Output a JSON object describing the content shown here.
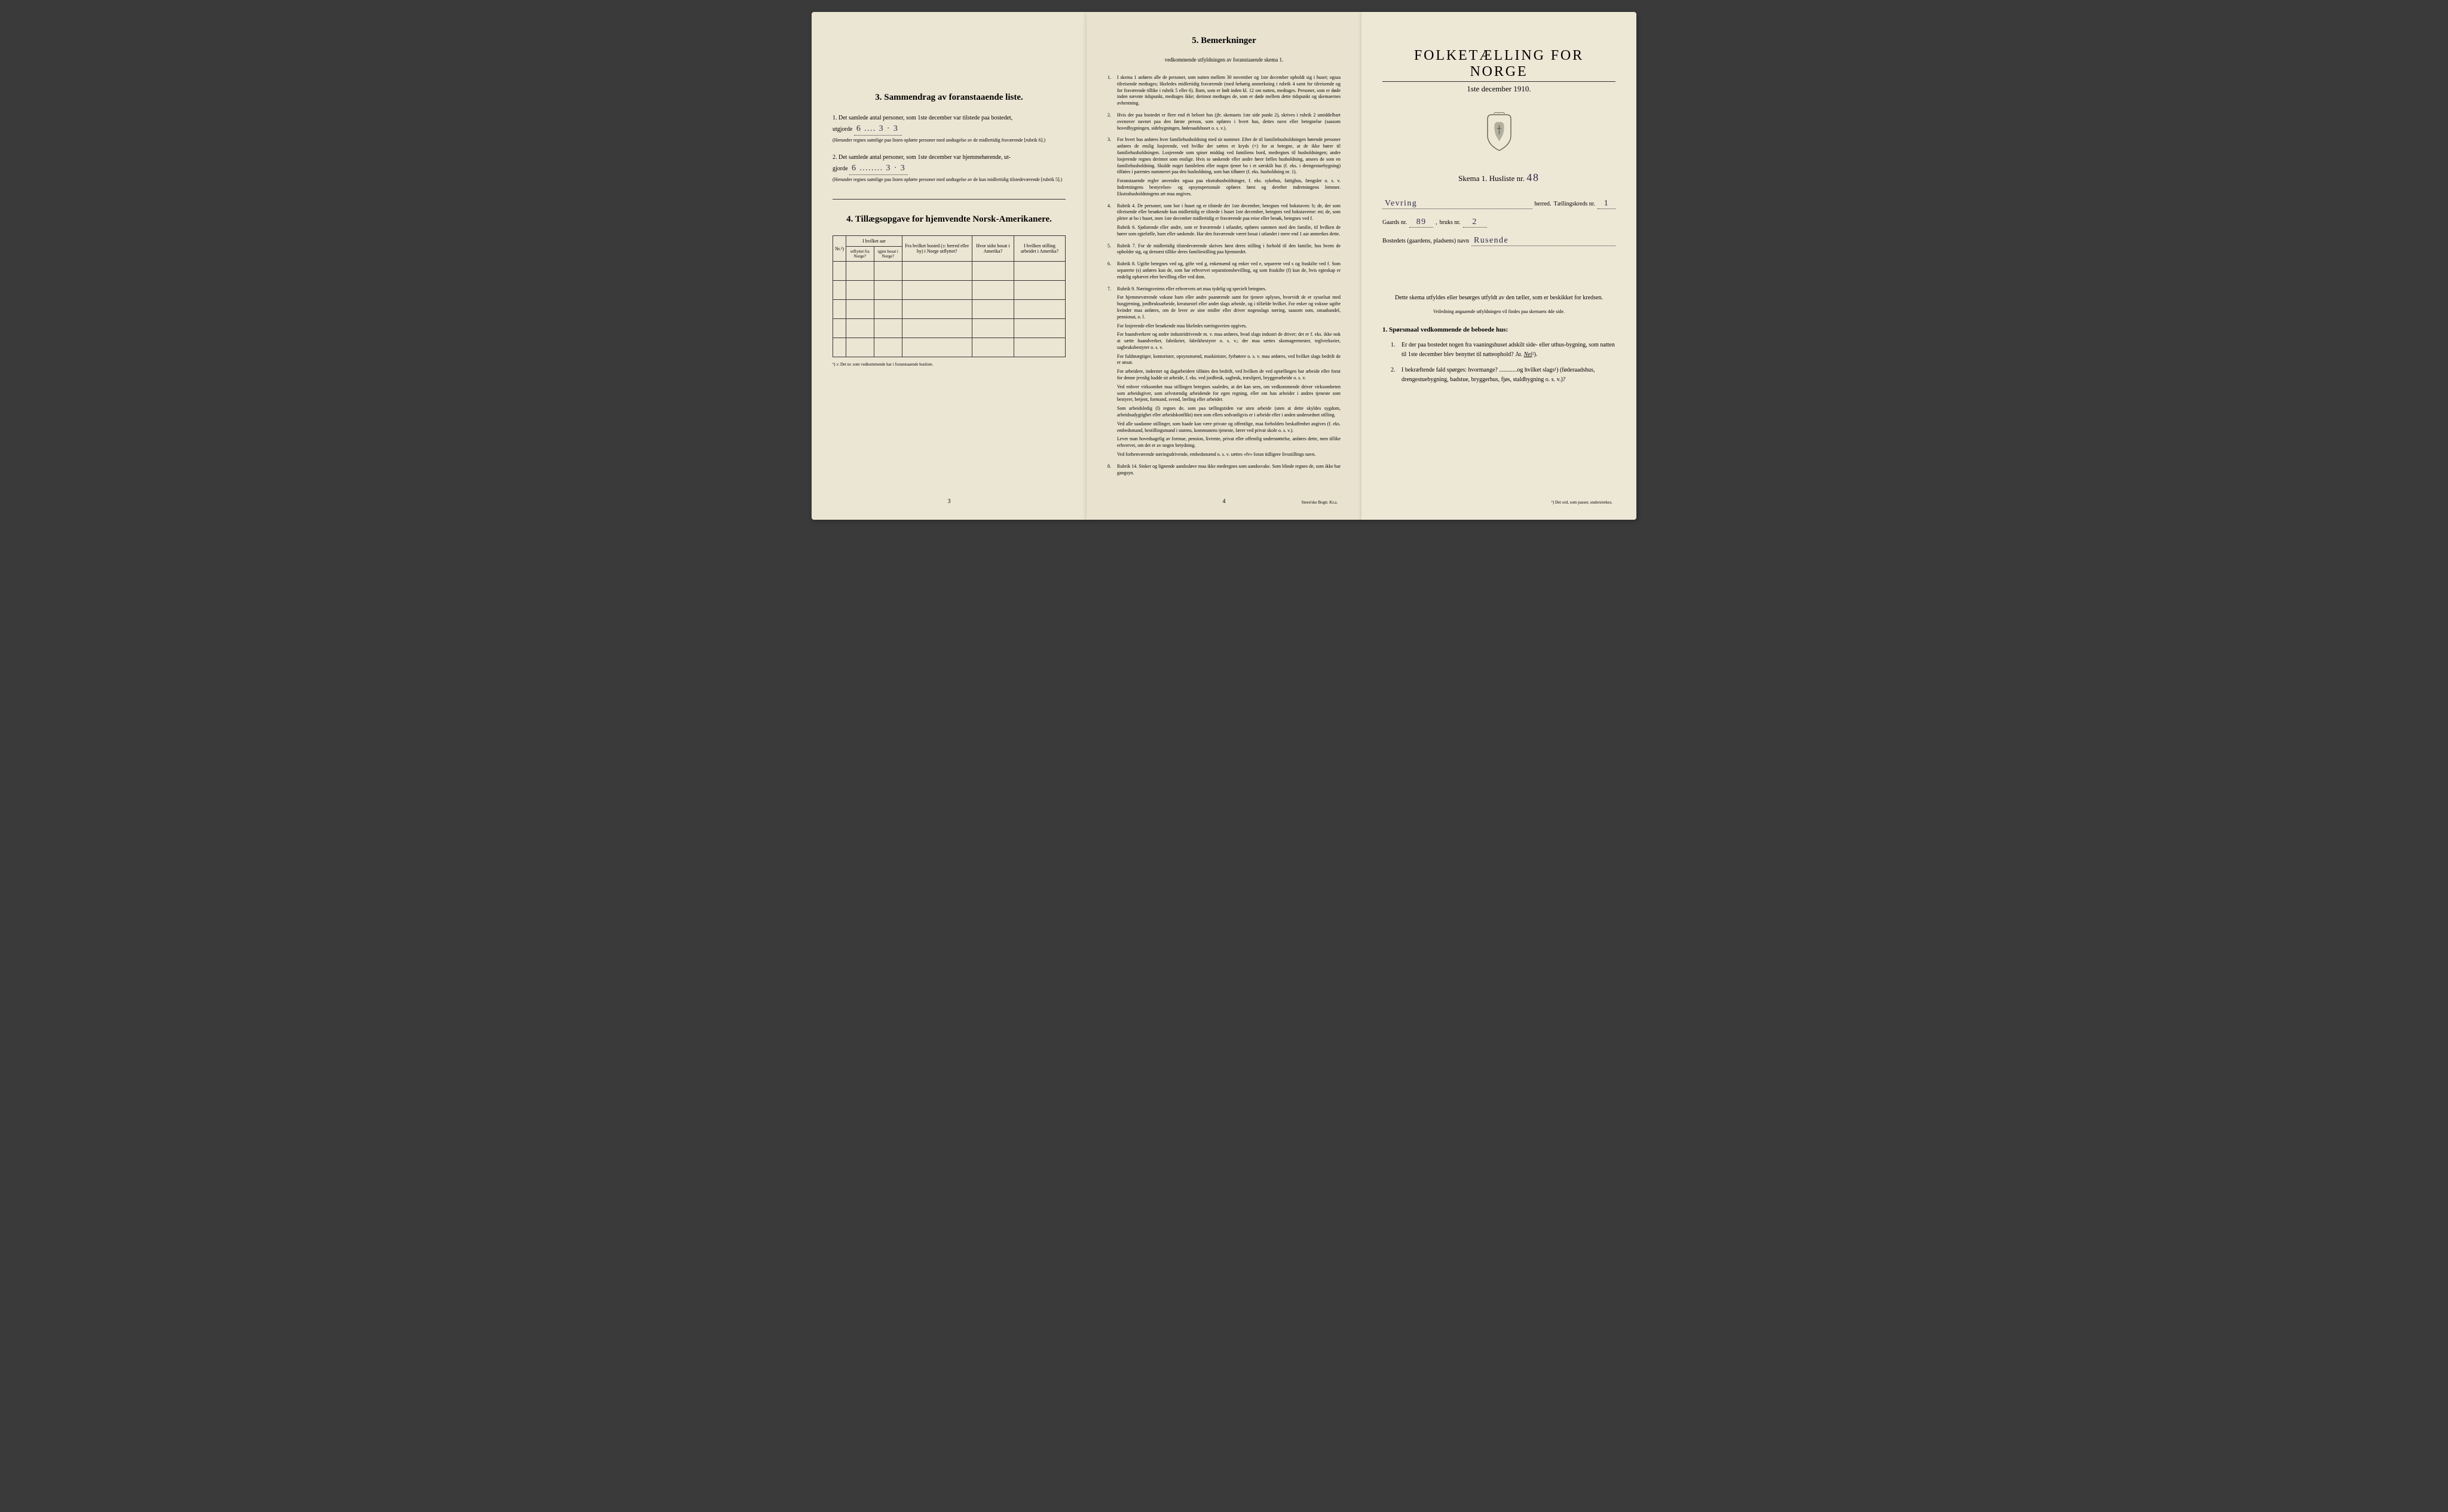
{
  "colors": {
    "paper": "#ebe5d3",
    "paper_mid": "#e8e2cf",
    "paper_right": "#ede7d6",
    "ink": "#1a1a1a",
    "handwriting": "#2a2a4a",
    "background": "#3a3a3a"
  },
  "left": {
    "section3": {
      "title": "3.   Sammendrag av foranstaaende liste.",
      "item1": {
        "num": "1.",
        "text": "Det samlede antal personer, som 1ste december var tilstede paa bostedet,",
        "text2": "utgjorde",
        "value": "6 .... 3 · 3",
        "note": "(Herunder regnes samtlige paa listen opførte personer med undtagelse av de midlertidig fraværende [rubrik 6].)"
      },
      "item2": {
        "num": "2.",
        "text": "Det samlede antal personer, som 1ste december var hjemmehørende, ut-",
        "text2": "gjorde",
        "value": "6 ........ 3 · 3",
        "note": "(Herunder regnes samtlige paa listen opførte personer med undtagelse av de kun midlertidig tilstedeværende [rubrik 5].)"
      }
    },
    "section4": {
      "title": "4.   Tillægsopgave for hjemvendte Norsk-Amerikanere.",
      "table": {
        "headers": {
          "col1": "Nr.¹)",
          "col2_top": "I hvilket aar",
          "col2a": "utflyttet fra Norge?",
          "col2b": "igjen bosat i Norge?",
          "col3": "Fra hvilket bosted (ɔ: herred eller by) i Norge utflyttet?",
          "col4": "Hvor sidst bosat i Amerika?",
          "col5": "I hvilken stilling arbeidet i Amerika?"
        },
        "row_count": 5
      },
      "footnote": "¹) ɔ: Det nr. som vedkommende har i foranstaaende husliste."
    },
    "page_num": "3"
  },
  "middle": {
    "title": "5.   Bemerkninger",
    "subtitle": "vedkommende utfyldningen av foranstaaende skema 1.",
    "items": [
      {
        "num": "1.",
        "text": "I skema 1 anføres alle de personer, som natten mellem 30 november og 1ste december opholdt sig i huset; ogsaa tilreisende medtages; likeledes midlertidig fraværende (med behørig anmerkning i rubrik 4 samt for tilreisende og for fraværende tillike i rubrik 5 eller 6). Barn, som er født inden kl. 12 om natten, medtages. Personer, som er døde inden nævnte tidspunkt, medtages ikke; derimot medtages de, som er døde mellem dette tidspunkt og skemaernes avhentning."
      },
      {
        "num": "2.",
        "text": "Hvis der paa bostedet er flere end ét beboet hus (jfr. skemaets 1ste side punkt 2), skrives i rubrik 2 umiddelbart ovenover navnet paa den første person, som opføres i hvert hus, dettes navn eller betegnelse (saasom hovedbygningen, sidebygningen, føderaadshuset o. s. v.)."
      },
      {
        "num": "3.",
        "text": "For hvert hus anføres hver familiehusholdning med sit nummer. Efter de til familiehusholdningen hørende personer anføres de enslig losjerende, ved hvilke der sættes et kryds (×) for at betegne, at de ikke hører til familiehusholdningen. Losjerende som spiser middag ved familiens bord, medregnes til husholdningen; andre losjerende regnes derimot som enslige. Hvis to søskende eller andre fører fælles husholdning, ansees de som en familiehusholdning. Skulde noget familelem eller nogen tjener bo i et særskilt hus (f. eks. i drengestuebygning) tilføies i parentes nummeret paa den husholdning, som han tilhører (f. eks. husholdning nr. 1).",
        "sub": "Foranstaaende regler anvendes ogsaa paa ekstrahusholdninger, f. eks. sykehus, fattighus, fængsler o. s. v. Indretningens bestyrelses- og opsynspersonale opføres først og derefter indretningens lemmer. Ekstrahusholdningens art maa angives."
      },
      {
        "num": "4.",
        "text": "Rubrik 4. De personer, som bor i huset og er tilstede der 1ste december, betegnes ved bokstaven: b; de, der som tilreisende eller besøkende kun midlertidig er tilstede i huset 1ste december, betegnes ved bokstaverne: mt; de, som pleier at bo i huset, men 1ste december midlertidig er fraværende paa reise eller besøk, betegnes ved f.",
        "sub": "Rubrik 6. Sjøfarende eller andre, som er fraværende i utlandet, opføres sammen med den familie, til hvilken de hører som egtefælle, barn eller søskende. Har den fraværende været bosat i utlandet i mere end 1 aar anmerkes dette."
      },
      {
        "num": "5.",
        "text": "Rubrik 7. For de midlertidig tilstedeværende skrives først deres stilling i forhold til den familie, hos hvem de opholder sig, og dernæst tillike deres familiestilling paa hjemstedet."
      },
      {
        "num": "6.",
        "text": "Rubrik 8. Ugifte betegnes ved ug, gifte ved g, enkemænd og enker ved e, separerte ved s og fraskilte ved f. Som separerte (s) anføres kun de, som har erhvervet separationsbevilling, og som fraskilte (f) kun de, hvis egteskap er endelig ophævet efter bevilling eller ved dom."
      },
      {
        "num": "7.",
        "text": "Rubrik 9. Næringsveiens eller erhvervets art maa tydelig og specielt betegnes.",
        "paragraphs": [
          "For hjemmeværende voksne barn eller andre paarørende samt for tjenere oplyses, hvorvidt de er sysselsat med husgjerning, jordbruksarbeide, kreaturstel eller andet slags arbeide, og i tilfælde hvilket. For enker og voksne ugifte kvinder maa anføres, om de lever av sine midler eller driver nogenslags næring, saasom som, smaahandel, pensionat, o. l.",
          "For losjerende eller besøkende maa likeledes næringsveien opgives.",
          "For haandverkere og andre industridrivende m. v. maa anføres, hvad slags industri de driver; det er f. eks. ikke nok at sætte haandverker, fabrikeier, fabrikbestyrer o. s. v.; der maa sættes skomagermester, teglverkseier, sagbruksbestyrer o. s. v.",
          "For fuldmægtiger, kontorister, opsynsmænd, maskinister, fyrbøtere o. s. v. maa anføres, ved hvilket slags bedrift de er ansat.",
          "For arbeidere, inderster og dagarbeidere tilføies den bedrift, ved hvilken de ved optællingen har arbeide eller forut for denne jevnlig hadde sit arbeide, f. eks. ved jordbruk, sagbruk, træsliperi, bryggerarbeide o. s. v.",
          "Ved enhver virksomhet maa stillingen betegnes saaledes, at det kan sees, om vedkommende driver virksomheten som arbeidsgiver, som selvstændig arbeidende for egen regning, eller om han arbeider i andres tjeneste som bestyrer, betjent, formand, svend, lærling eller arbeider.",
          "Som arbeidsledig (l) regnes de, som paa tællingstiden var uten arbeide (uten at dette skyldes sygdom, arbeidsudygtighet eller arbeidskonflikt) men som ellers sedvanligvis er i arbeide eller i anden underordnet stilling.",
          "Ved alle saadanne stillinger, som baade kan være private og offentlige, maa forholdets beskaffenhet angives (f. eks. embedsmand, bestillingsmand i statens, kommunens tjeneste, lærer ved privat skole o. s. v.).",
          "Lever man hovedsagelig av formue, pension, livrente, privat eller offentlig understøttelse, anføres dette, men tillike erhvervet, om det er av nogen betydning.",
          "Ved forhenværende næringsdrivende, embedsmænd o. s. v. sættes «fv» foran tidligere livsstillings navn."
        ]
      },
      {
        "num": "8.",
        "text": "Rubrik 14. Sinker og lignende aandssløve maa ikke medregnes som aandssvake. Som blinde regnes de, som ikke har gangsyn."
      }
    ],
    "page_num": "4",
    "printer": "Steen'ske Bogtr. Kr.a."
  },
  "right": {
    "title": "FOLKETÆLLING FOR NORGE",
    "date": "1ste december 1910.",
    "skema_label": "Skema 1.   Husliste nr.",
    "husliste_nr": "48",
    "fields": {
      "herred_value": "Vevring",
      "herred_label": "herred.",
      "tellingskreds_label": "Tællingskreds nr.",
      "tellingskreds_value": "1",
      "gaards_label": "Gaards nr.",
      "gaards_value": "89",
      "bruks_label": "bruks nr.",
      "bruks_value": "2",
      "bosted_label": "Bostedets (gaardens, pladsens) navn",
      "bosted_value": "Rusende"
    },
    "paragraph": "Dette skema utfyldes eller besørges utfyldt av den tæller, som er beskikket for kredsen.",
    "instruction": "Veiledning angaaende utfyldningen vil findes paa skemaets 4de side.",
    "q_heading": "1. Spørsmaal vedkommende de beboede hus:",
    "q1": {
      "num": "1.",
      "text_before": "Er der paa bostedet nogen fra vaaningshuset adskilt side- eller uthus-bygning, som natten til 1ste december blev benyttet til natteophold?",
      "ja": "Ja.",
      "nei": "Nei",
      "nei_mark": "²)."
    },
    "q2": {
      "num": "2.",
      "text": "I bekræftende fald spørges: hvormange? ............og hvilket slags¹) (føderaadshus, drengestuebygning, badstue, bryggerhus, fjøs, staldbygning o. s. v.)?"
    },
    "footnote": "¹) Det ord, som passer, understrekes."
  }
}
